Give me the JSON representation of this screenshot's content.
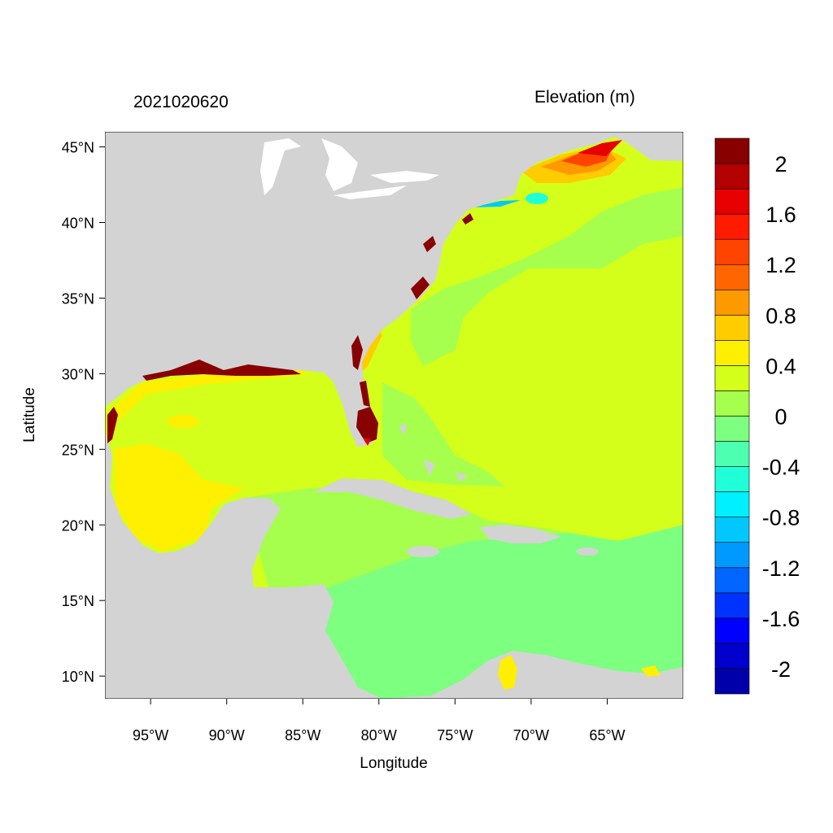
{
  "header": {
    "left_title": "2021020620",
    "right_title": "Elevation (m)"
  },
  "map": {
    "x_axis_label": "Longitude",
    "y_axis_label": "Latitude",
    "lon_range": [
      -98,
      -60
    ],
    "lat_range": [
      8.5,
      46
    ],
    "lon_ticks": [
      {
        "value": -95,
        "label": "95°W"
      },
      {
        "value": -90,
        "label": "90°W"
      },
      {
        "value": -85,
        "label": "85°W"
      },
      {
        "value": -80,
        "label": "80°W"
      },
      {
        "value": -75,
        "label": "75°W"
      },
      {
        "value": -70,
        "label": "70°W"
      },
      {
        "value": -65,
        "label": "65°W"
      }
    ],
    "lat_ticks": [
      {
        "value": 45,
        "label": "45°N"
      },
      {
        "value": 40,
        "label": "40°N"
      },
      {
        "value": 35,
        "label": "35°N"
      },
      {
        "value": 30,
        "label": "30°N"
      },
      {
        "value": 25,
        "label": "25°N"
      },
      {
        "value": 20,
        "label": "20°N"
      },
      {
        "value": 15,
        "label": "15°N"
      },
      {
        "value": 10,
        "label": "10°N"
      }
    ],
    "land_color": "#d3d3d3",
    "features": [
      {
        "name": "gulf-of-mexico-field",
        "value_range": "0.2 to 0.4"
      },
      {
        "name": "western-gulf-high",
        "value_range": "0.4 to 0.6"
      },
      {
        "name": "caribbean-field",
        "value_range": "-0.2 to 0"
      },
      {
        "name": "gulf-of-maine-surge",
        "value_range": "1.4 to 2.0"
      },
      {
        "name": "south-florida-surge",
        "value_range": "above 2.0"
      }
    ]
  },
  "colorbar": {
    "colors": [
      "#0000aa",
      "#0000cd",
      "#0000ff",
      "#0033ff",
      "#0066ff",
      "#0099ff",
      "#00c8ff",
      "#00f0ff",
      "#1fffd8",
      "#4dffb0",
      "#7dff80",
      "#a6ff4d",
      "#d4ff1a",
      "#ffef00",
      "#ffcc00",
      "#ff9900",
      "#ff6600",
      "#ff4400",
      "#ff1a00",
      "#e60000",
      "#b30000",
      "#880000"
    ],
    "labels": [
      "2",
      "1.6",
      "1.2",
      "0.8",
      "0.4",
      "0",
      "-0.4",
      "-0.8",
      "-1.2",
      "-1.6",
      "-2"
    ]
  }
}
